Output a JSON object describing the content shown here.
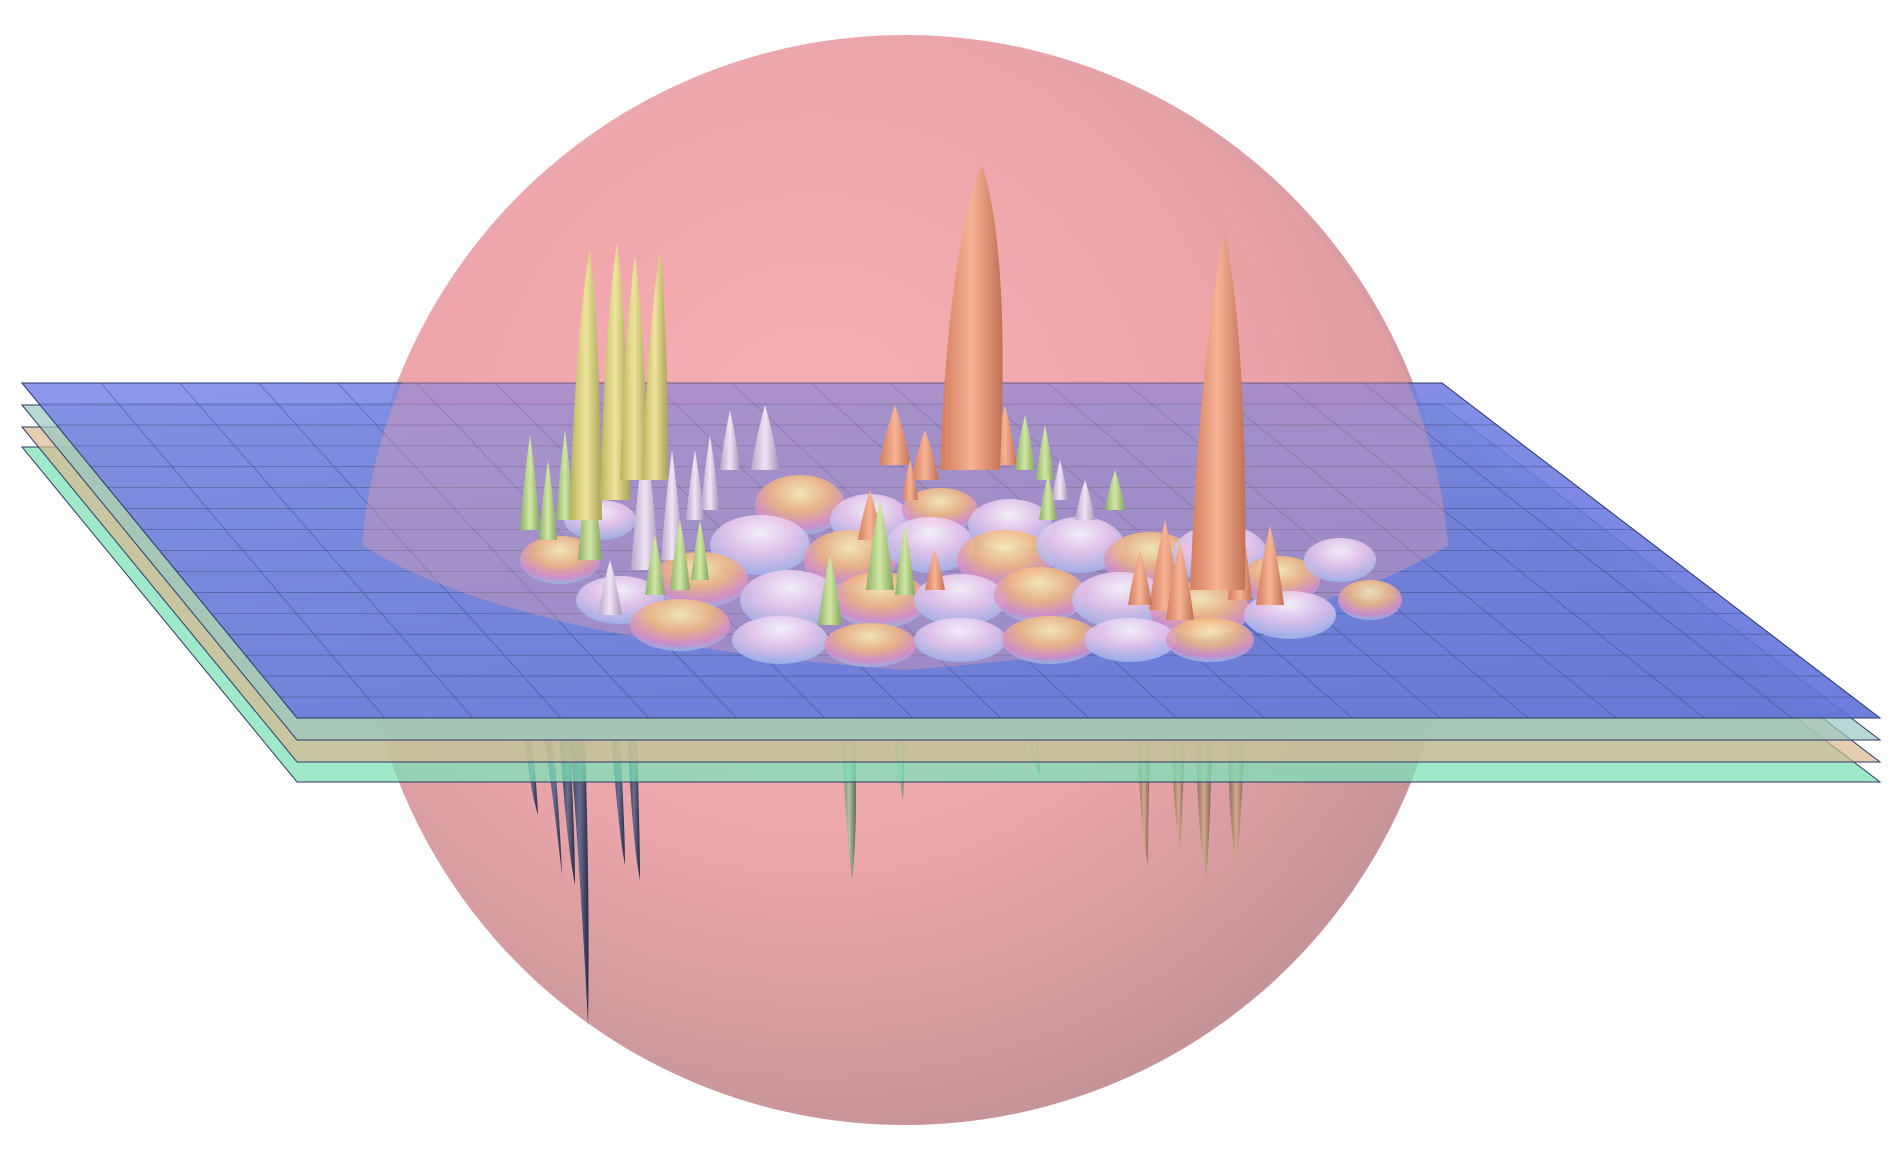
{
  "scene": {
    "kind": "3d-surface-render",
    "colors": {
      "background": "#ffffff",
      "sphere": "#f4a0a6",
      "sphere_edge": "#b98a90",
      "plane_top": "#6f7fe6",
      "plane_second": "#98c8c2",
      "plane_third": "#d8b890",
      "plane_bottom": "#7fe0b8",
      "grid_line": "#2a3a6a",
      "spike_yellow": "#e2d67c",
      "spike_green": "#b6dc88",
      "spike_orange": "#f2a07a",
      "spike_lilac": "#d9c6e6",
      "spike_dark": "#4a4e6e"
    }
  }
}
